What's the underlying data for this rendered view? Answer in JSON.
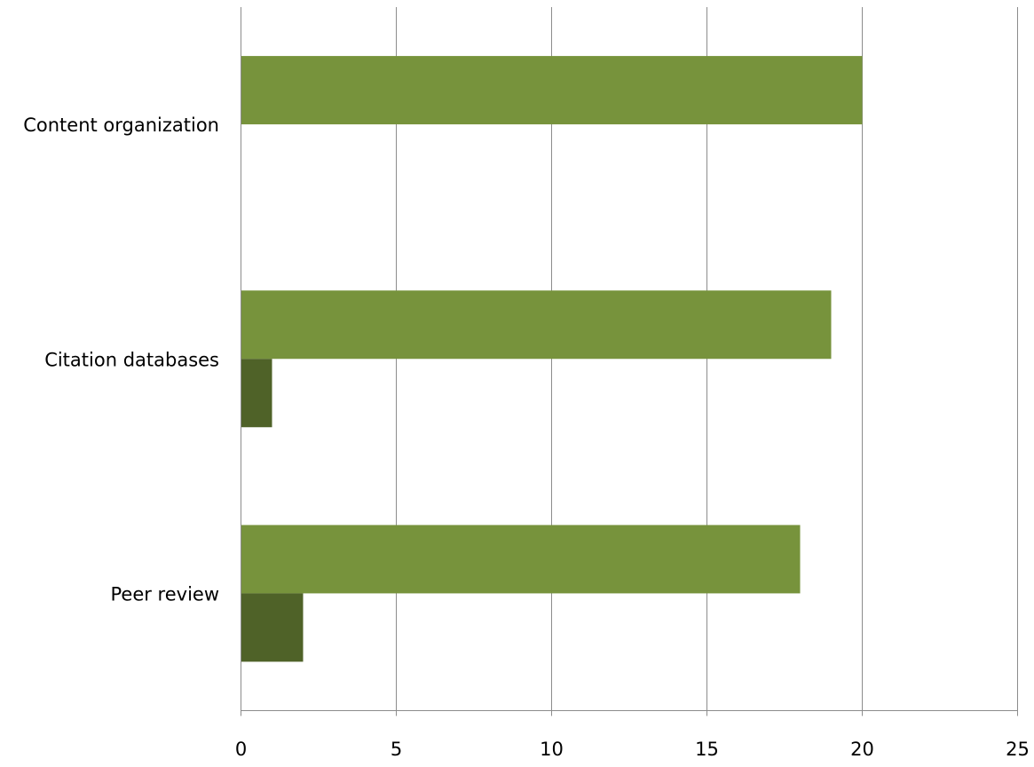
{
  "chart_data": {
    "type": "bar",
    "orientation": "horizontal",
    "categories": [
      "Content organization",
      "Citation databases",
      "Peer review"
    ],
    "series": [
      {
        "values": [
          20,
          19,
          18
        ],
        "color": "#77933C"
      },
      {
        "values": [
          0,
          1,
          2
        ],
        "color": "#4F6228"
      }
    ],
    "xlim": [
      0,
      25
    ],
    "xticks": [
      0,
      5,
      10,
      15,
      20,
      25
    ],
    "title": "",
    "xlabel": "",
    "ylabel": "",
    "grid": "vertical",
    "legend": "none"
  }
}
